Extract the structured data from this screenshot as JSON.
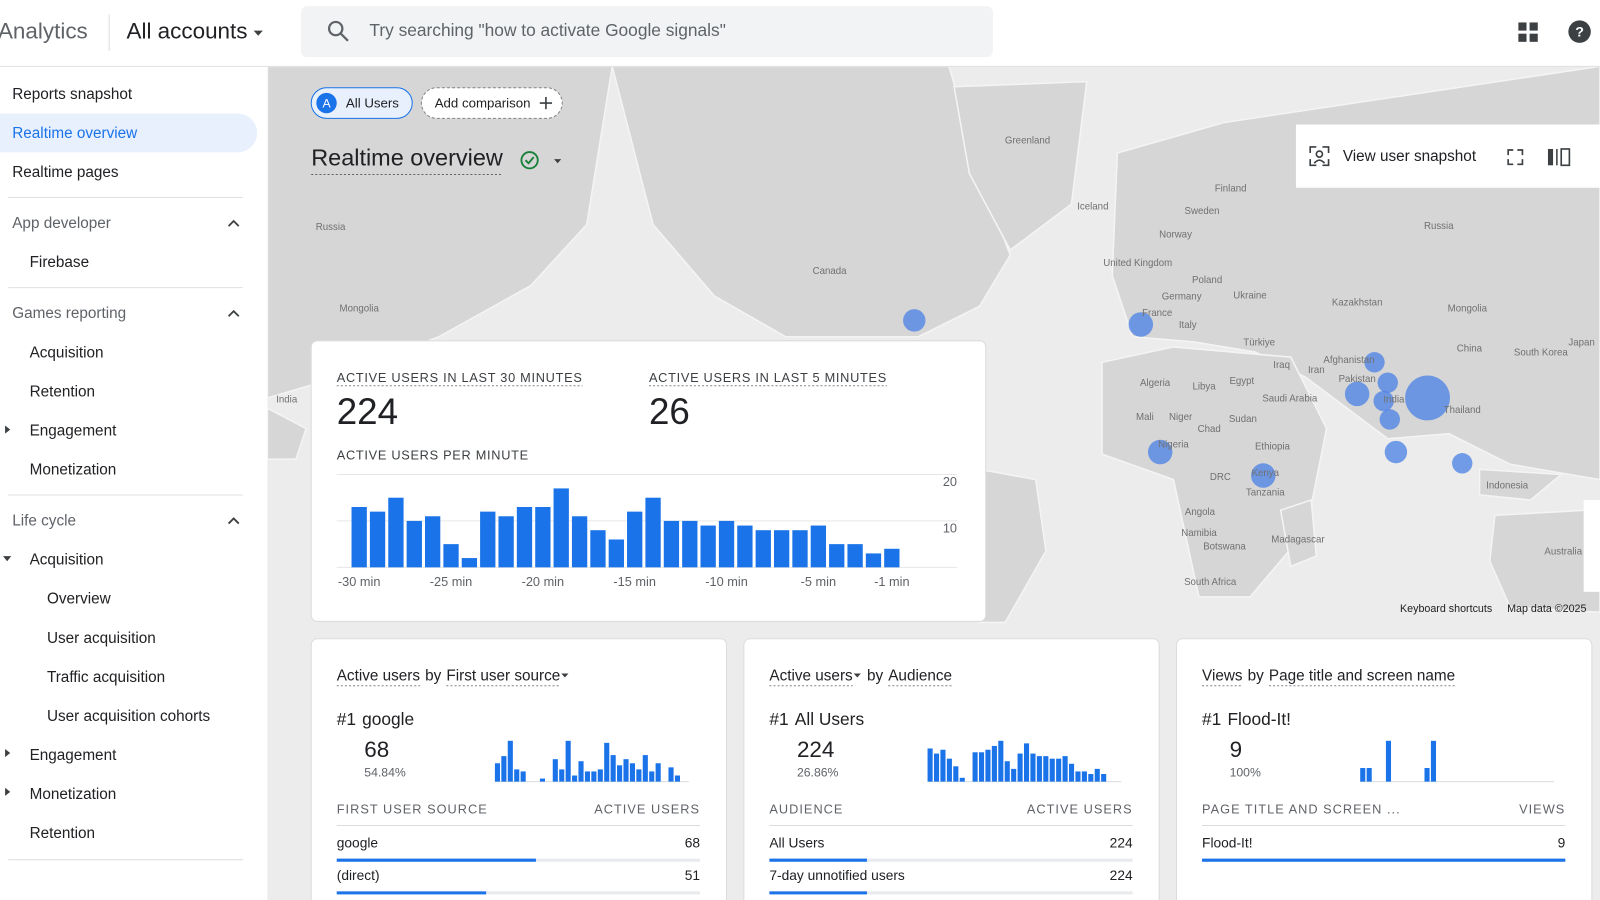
{
  "header": {
    "product": "Analytics",
    "account": "All accounts",
    "search_placeholder": "Try searching \"how to activate Google signals\""
  },
  "sidebar": {
    "top": [
      "Reports snapshot",
      "Realtime overview",
      "Realtime pages"
    ],
    "sections": [
      {
        "title": "App developer",
        "items": [
          {
            "label": "Firebase"
          }
        ]
      },
      {
        "title": "Games reporting",
        "items": [
          {
            "label": "Acquisition"
          },
          {
            "label": "Retention"
          },
          {
            "label": "Engagement"
          },
          {
            "label": "Monetization"
          }
        ]
      },
      {
        "title": "Life cycle",
        "items": [
          {
            "label": "Acquisition",
            "children": [
              "Overview",
              "User acquisition",
              "Traffic acquisition",
              "User acquisition cohorts"
            ]
          },
          {
            "label": "Engagement"
          },
          {
            "label": "Monetization"
          },
          {
            "label": "Retention"
          }
        ]
      }
    ]
  },
  "comparisons": {
    "badge": "A",
    "active": "All Users",
    "add": "Add comparison"
  },
  "title": "Realtime overview",
  "toolbar": {
    "snapshot": "View user snapshot"
  },
  "map": {
    "labels": [
      "Greenland",
      "Iceland",
      "Finland",
      "Sweden",
      "Norway",
      "Russia",
      "Russia",
      "United Kingdom",
      "Poland",
      "Germany",
      "Ukraine",
      "Kazakhstan",
      "Mongolia",
      "Mongolia",
      "France",
      "Italy",
      "Canada",
      "Türkiye",
      "China",
      "South Korea",
      "Japan",
      "Iraq",
      "Iran",
      "Afghanistan",
      "Pakistan",
      "India",
      "India",
      "Algeria",
      "Libya",
      "Egypt",
      "Saudi Arabia",
      "Thailand",
      "Mali",
      "Niger",
      "Chad",
      "Sudan",
      "Nigeria",
      "Ethiopia",
      "DRC",
      "Kenya",
      "Tanzania",
      "Indonesia",
      "Angola",
      "Namibia",
      "Botswana",
      "Madagascar",
      "Australia",
      "South Africa"
    ],
    "footer": [
      "Keyboard shortcuts",
      "Map data ©2025"
    ]
  },
  "realtime_card": {
    "metrics": [
      {
        "label": "ACTIVE USERS IN LAST 30 MINUTES",
        "value": 224
      },
      {
        "label": "ACTIVE USERS IN LAST 5 MINUTES",
        "value": 26
      }
    ],
    "chart": {
      "type": "bar",
      "title": "ACTIVE USERS PER MINUTE",
      "categories": [
        "-30 min",
        null,
        null,
        null,
        null,
        "-25 min",
        null,
        null,
        null,
        null,
        "-20 min",
        null,
        null,
        null,
        null,
        "-15 min",
        null,
        null,
        null,
        null,
        "-10 min",
        null,
        null,
        null,
        null,
        "-5 min",
        null,
        null,
        null,
        "-1 min"
      ],
      "values": [
        13,
        12,
        15,
        10,
        11,
        5,
        2,
        12,
        11,
        13,
        13,
        17,
        11,
        8,
        6,
        12,
        15,
        10,
        10,
        9,
        10,
        9,
        8,
        8,
        8,
        9,
        5,
        5,
        3,
        4
      ],
      "color": "#1a73e8",
      "ylim": [
        0,
        20
      ],
      "yticks": [
        10,
        20
      ],
      "grid": true
    }
  },
  "cards": [
    {
      "metric": "Active users",
      "by": "by",
      "dimension": "First user source",
      "top": {
        "rank": "#1",
        "name": "google",
        "value": 68,
        "share": {
          "value": 54.84,
          "label": "54.84%"
        }
      },
      "sparkline": [
        18,
        25,
        40,
        12,
        10,
        0,
        0,
        3,
        0,
        22,
        12,
        40,
        6,
        20,
        10,
        10,
        12,
        38,
        26,
        16,
        22,
        18,
        12,
        26,
        10,
        18,
        0,
        14,
        6,
        0
      ],
      "columns": [
        "FIRST USER SOURCE",
        "ACTIVE USERS"
      ],
      "rows": [
        {
          "name": "google",
          "value": 68
        },
        {
          "name": "(direct)",
          "value": 51
        }
      ]
    },
    {
      "metric": "Active users",
      "by": "by",
      "dimension": "Audience",
      "top": {
        "rank": "#1",
        "name": "All Users",
        "value": 224,
        "share": {
          "value": 26.86,
          "label": "26.86%"
        }
      },
      "sparkline": [
        26,
        22,
        25,
        18,
        12,
        3,
        0,
        23,
        23,
        25,
        28,
        32,
        16,
        10,
        22,
        30,
        22,
        20,
        20,
        18,
        18,
        20,
        14,
        8,
        8,
        6,
        10,
        6,
        0,
        0
      ],
      "columns": [
        "AUDIENCE",
        "ACTIVE USERS"
      ],
      "rows": [
        {
          "name": "All Users",
          "value": 224
        },
        {
          "name": "7-day unnotified users",
          "value": 224
        }
      ]
    },
    {
      "metric": "Views",
      "by": "by",
      "dimension": "Page title and screen name",
      "top": {
        "rank": "#1",
        "name": "Flood-It!",
        "value": 9,
        "share": {
          "value": 100,
          "label": "100%"
        }
      },
      "sparkline": [
        1,
        1,
        0,
        0,
        3,
        0,
        0,
        0,
        0,
        0,
        1,
        3,
        0,
        0,
        0,
        0,
        0,
        0,
        0,
        0,
        0,
        0,
        0,
        0,
        0,
        0,
        0,
        0,
        0,
        0
      ],
      "columns": [
        "PAGE TITLE AND SCREEN ...",
        "VIEWS"
      ],
      "rows": [
        {
          "name": "Flood-It!",
          "value": 9
        }
      ]
    }
  ]
}
